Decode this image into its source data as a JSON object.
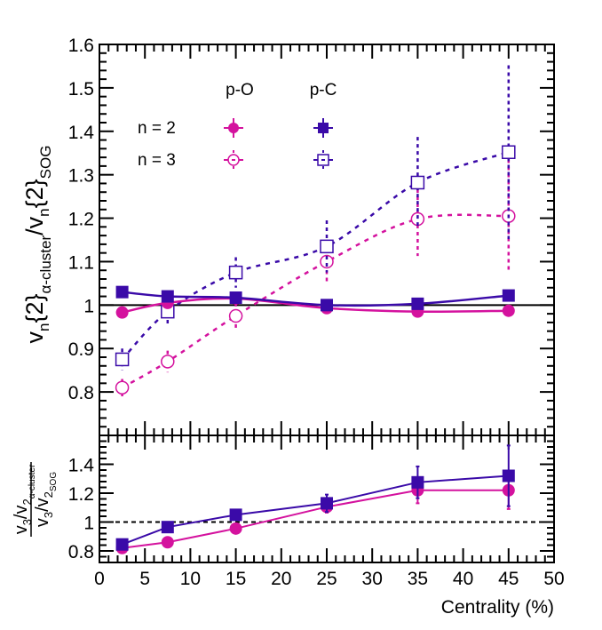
{
  "chart_data": [
    {
      "type": "scatter",
      "panel": "top",
      "ylabel": "v_n{2}_α-cluster / v_n{2}_SOG",
      "ylabel_parts": {
        "v": "v",
        "n": "n",
        "two": "{2}",
        "sub1": "α-cluster",
        "slash": "/v",
        "sub2": "SOG"
      },
      "xlabel": "",
      "xlim": [
        0,
        50
      ],
      "ylim": [
        0.7,
        1.6
      ],
      "y_ticks": [
        0.8,
        0.9,
        1,
        1.1,
        1.2,
        1.3,
        1.4,
        1.5,
        1.6
      ],
      "y_tick_labels": [
        "0.8",
        "0.9",
        "1",
        "1.1",
        "1.2",
        "1.3",
        "1.4",
        "1.5",
        "1.6"
      ],
      "reference_line": 1,
      "legend": {
        "placement": "top-left",
        "col_headers": [
          "p-O",
          "p-C"
        ],
        "row_labels": [
          "n = 2",
          "n = 3"
        ]
      },
      "x": [
        2.5,
        7.5,
        15,
        25,
        35,
        45
      ],
      "series": [
        {
          "name": "p-O n=2",
          "system": "p-O",
          "n": 2,
          "marker": "filled-circle",
          "color": "#d4129e",
          "line": "solid",
          "values": [
            0.983,
            1.005,
            1.015,
            0.993,
            0.985,
            0.987
          ],
          "errors": [
            0.005,
            0.005,
            0.005,
            0.005,
            0.005,
            0.005
          ]
        },
        {
          "name": "p-C n=2",
          "system": "p-C",
          "n": 2,
          "marker": "filled-square",
          "color": "#3a0aa8",
          "line": "solid",
          "values": [
            1.03,
            1.02,
            1.017,
            1.0,
            1.003,
            1.022
          ],
          "errors": [
            0.005,
            0.005,
            0.005,
            0.005,
            0.005,
            0.005
          ]
        },
        {
          "name": "p-O n=3",
          "system": "p-O",
          "n": 3,
          "marker": "open-circle",
          "color": "#d4129e",
          "line": "dashed",
          "values": [
            0.81,
            0.87,
            0.975,
            1.1,
            1.198,
            1.205
          ],
          "errors": [
            0.02,
            0.025,
            0.03,
            0.045,
            0.085,
            0.13
          ]
        },
        {
          "name": "p-C n=3",
          "system": "p-C",
          "n": 3,
          "marker": "open-square",
          "color": "#3a0aa8",
          "line": "dashed",
          "values": [
            0.875,
            0.985,
            1.075,
            1.135,
            1.282,
            1.352
          ],
          "errors": [
            0.025,
            0.03,
            0.035,
            0.06,
            0.105,
            0.2
          ]
        }
      ]
    },
    {
      "type": "line",
      "panel": "bottom",
      "ylabel": "(v3/v2_α-cluster) / (v3/v2_SOG)",
      "ylabel_parts": {
        "num_v3": "v",
        "num_3": "3",
        "num_slash": "/v",
        "num_2": "2",
        "num_sub": "α-cluster",
        "den_v3": "v",
        "den_3": "3",
        "den_slash": "/v",
        "den_2": "2",
        "den_sub": "SOG"
      },
      "xlabel": "Centrality (%)",
      "xlim": [
        0,
        50
      ],
      "ylim": [
        0.72,
        1.6
      ],
      "x_ticks": [
        0,
        5,
        10,
        15,
        20,
        25,
        30,
        35,
        40,
        45,
        50
      ],
      "x_tick_labels": [
        "0",
        "5",
        "10",
        "15",
        "20",
        "25",
        "30",
        "35",
        "40",
        "45",
        "50"
      ],
      "y_ticks": [
        0.8,
        1,
        1.2,
        1.4
      ],
      "y_tick_labels": [
        "0.8",
        "1",
        "1.2",
        "1.4"
      ],
      "reference_line": 1,
      "x": [
        2.5,
        7.5,
        15,
        25,
        35,
        45
      ],
      "series": [
        {
          "name": "p-O",
          "marker": "filled-circle",
          "color": "#d4129e",
          "values": [
            0.82,
            0.86,
            0.955,
            1.105,
            1.22,
            1.22
          ],
          "errors": [
            0.01,
            0.01,
            0.015,
            0.04,
            0.09,
            0.13
          ]
        },
        {
          "name": "p-C",
          "marker": "filled-square",
          "color": "#3a0aa8",
          "values": [
            0.845,
            0.965,
            1.05,
            1.13,
            1.275,
            1.32
          ],
          "errors": [
            0.01,
            0.015,
            0.02,
            0.06,
            0.11,
            0.21
          ]
        }
      ]
    }
  ]
}
